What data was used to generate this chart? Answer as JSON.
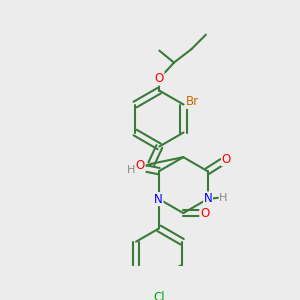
{
  "bg_color": "#ececec",
  "bond_color": "#3a7a3a",
  "bond_width": 1.5,
  "atom_colors": {
    "O": "#ff0000",
    "N": "#0000ff",
    "Br": "#cc6600",
    "Cl": "#00aa00",
    "H": "#888888",
    "C": "#3a7a3a"
  },
  "font_size": 8.5,
  "fig_size": [
    3.0,
    3.0
  ],
  "dpi": 100
}
